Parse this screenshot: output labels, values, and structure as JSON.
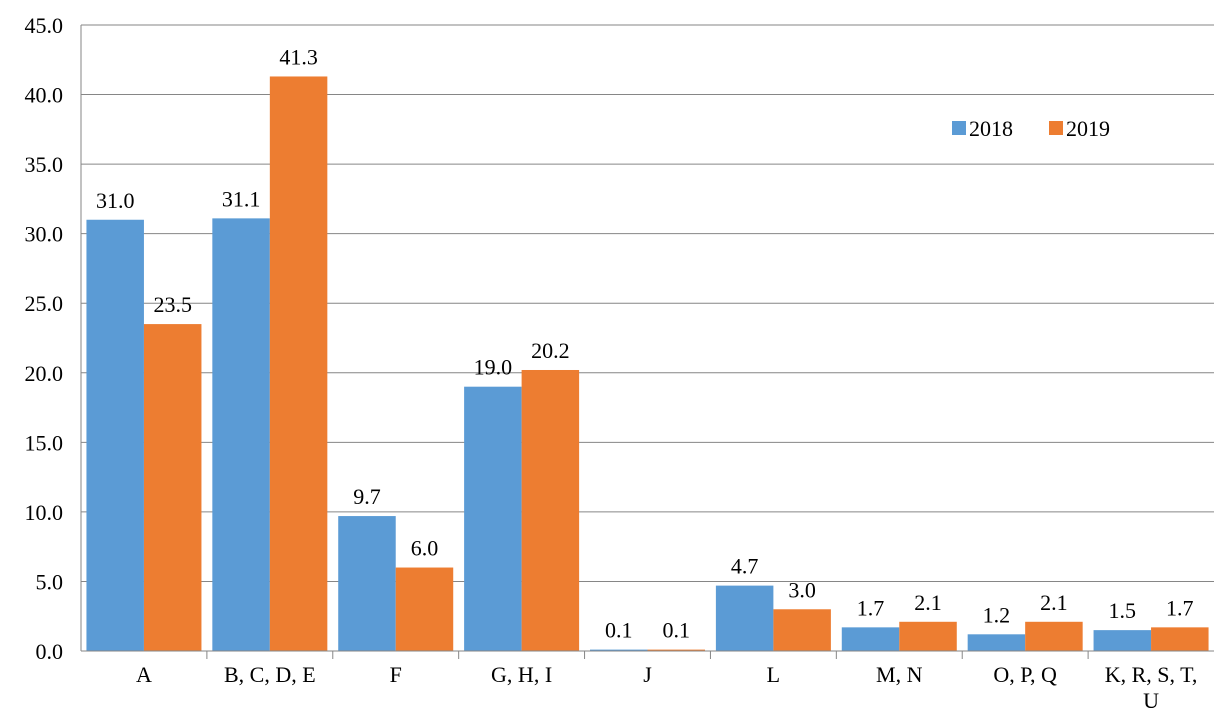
{
  "chart_data": {
    "type": "bar",
    "categories": [
      "A",
      "B, C, D, E",
      "F",
      "G, H, I",
      "J",
      "L",
      "M, N",
      "O, P, Q",
      "K, R, S, T, U"
    ],
    "series": [
      {
        "name": "2018",
        "color": "#5B9BD5",
        "values": [
          31.0,
          31.1,
          9.7,
          19.0,
          0.1,
          4.7,
          1.7,
          1.2,
          1.5
        ]
      },
      {
        "name": "2019",
        "color": "#ED7D31",
        "values": [
          23.5,
          41.3,
          6.0,
          20.2,
          0.1,
          3.0,
          2.1,
          2.1,
          1.7
        ]
      }
    ],
    "data_labels": {
      "2018": [
        "31.0",
        "31.1",
        "9.7",
        "19.0",
        "0.1",
        "4.7",
        "1.7",
        "1.2",
        "1.5"
      ],
      "2019": [
        "23.5",
        "41.3",
        "6.0",
        "20.2",
        "0.1",
        "3.0",
        "2.1",
        "2.1",
        "1.7"
      ]
    },
    "y_ticks": [
      "0.0",
      "5.0",
      "10.0",
      "15.0",
      "20.0",
      "25.0",
      "30.0",
      "35.0",
      "40.0",
      "45.0"
    ],
    "ylim": [
      0,
      45
    ],
    "title": "",
    "xlabel": "",
    "ylabel": "",
    "grid": "horizontal",
    "legend": "top-right"
  }
}
